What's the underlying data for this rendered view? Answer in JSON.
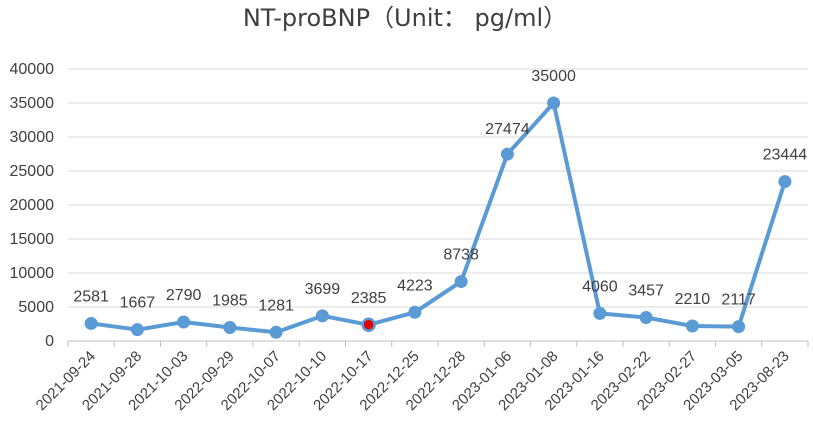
{
  "chart_data": {
    "type": "line",
    "title": "NT-proBNP（Unit： pg/ml）",
    "xlabel": "",
    "ylabel": "",
    "ylim": [
      0,
      40000
    ],
    "yticks": [
      0,
      5000,
      10000,
      15000,
      20000,
      25000,
      30000,
      35000,
      40000
    ],
    "grid": true,
    "legend": "none",
    "categories": [
      "2021-09-24",
      "2021-09-28",
      "2021-10-03",
      "2022-09-29",
      "2022-10-07",
      "2022-10-10",
      "2022-10-17",
      "2022-12-25",
      "2022-12-28",
      "2023-01-06",
      "2023-01-08",
      "2023-01-16",
      "2023-02-22",
      "2023-02-27",
      "2023-03-05",
      "2023-08-23"
    ],
    "series": [
      {
        "values": [
          2581,
          1667,
          2790,
          1985,
          1281,
          3699,
          2385,
          4223,
          8738,
          27474,
          35000,
          4060,
          3457,
          2210,
          2117,
          23444
        ],
        "color": "#5b9bd5",
        "highlight_index": 6,
        "highlight_color": "#e00000"
      }
    ],
    "data_labels": [
      "2581",
      "1667",
      "2790",
      "1985",
      "1281",
      "3699",
      "2385",
      "4223",
      "8738",
      "27474",
      "35000",
      "4060",
      "3457",
      "2210",
      "2117",
      "23444"
    ]
  }
}
